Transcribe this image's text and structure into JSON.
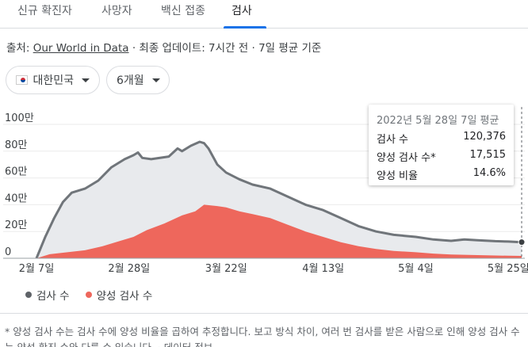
{
  "tabs": [
    {
      "label": "신규 확진자",
      "active": false
    },
    {
      "label": "사망자",
      "active": false
    },
    {
      "label": "백신 접종",
      "active": false
    },
    {
      "label": "검사",
      "active": true
    }
  ],
  "source": {
    "prefix": "출처:",
    "link_text": "Our World in Data",
    "rest": "· 최종 업데이트: 7시간 전 · 7일 평균 기준"
  },
  "filters": {
    "region": "대한민국",
    "period": "6개월"
  },
  "tooltip": {
    "title": "2022년 5월 28일 7일 평균",
    "rows": [
      {
        "label": "검사 수",
        "value": "120,376"
      },
      {
        "label": "양성 검사 수*",
        "value": "17,515"
      },
      {
        "label": "양성 비율",
        "value": "14.6%"
      }
    ]
  },
  "legend": {
    "tests": "검사 수",
    "positive": "양성 검사 수"
  },
  "colors": {
    "tests_line": "#70757a",
    "tests_fill": "#e8eaed",
    "positive_fill": "#ee675c",
    "accent": "#1a73e8"
  },
  "footnote": "* 양성 검사 수는 검사 수에 양성 비율을 곱하여 추정합니다. 보고 방식 차이, 여러 번 검사를 받은 사람으로 인해 양성 검사 수는 양성 확진 수와 다를 수 있습니다. · 데이터 정보",
  "chart_data": {
    "type": "area",
    "ylim": [
      0,
      1000000
    ],
    "y_ticks": [
      0,
      200000,
      400000,
      600000,
      800000,
      1000000
    ],
    "y_tick_labels": [
      "0",
      "20만",
      "40만",
      "60만",
      "80만",
      "100만"
    ],
    "x_ticks": [
      "2월 7일",
      "2월 28일",
      "3월 22일",
      "4월 13일",
      "5월 4일",
      "5월 25일"
    ],
    "x_range": [
      "2022-02-07",
      "2022-05-28"
    ],
    "grid": true,
    "legend_position": "bottom-left",
    "highlight": {
      "date": "2022-05-28",
      "tests": 120376,
      "positive": 17515
    },
    "series": [
      {
        "name": "검사 수",
        "points": [
          [
            "2022-02-07",
            0
          ],
          [
            "2022-02-09",
            160000
          ],
          [
            "2022-02-11",
            300000
          ],
          [
            "2022-02-13",
            420000
          ],
          [
            "2022-02-15",
            490000
          ],
          [
            "2022-02-18",
            520000
          ],
          [
            "2022-02-21",
            580000
          ],
          [
            "2022-02-24",
            680000
          ],
          [
            "2022-02-27",
            740000
          ],
          [
            "2022-03-01",
            770000
          ],
          [
            "2022-03-02",
            790000
          ],
          [
            "2022-03-03",
            750000
          ],
          [
            "2022-03-05",
            740000
          ],
          [
            "2022-03-09",
            760000
          ],
          [
            "2022-03-11",
            820000
          ],
          [
            "2022-03-12",
            800000
          ],
          [
            "2022-03-14",
            840000
          ],
          [
            "2022-03-16",
            870000
          ],
          [
            "2022-03-17",
            860000
          ],
          [
            "2022-03-18",
            820000
          ],
          [
            "2022-03-20",
            700000
          ],
          [
            "2022-03-22",
            640000
          ],
          [
            "2022-03-25",
            590000
          ],
          [
            "2022-03-28",
            550000
          ],
          [
            "2022-04-01",
            520000
          ],
          [
            "2022-04-05",
            460000
          ],
          [
            "2022-04-09",
            400000
          ],
          [
            "2022-04-13",
            360000
          ],
          [
            "2022-04-17",
            300000
          ],
          [
            "2022-04-21",
            240000
          ],
          [
            "2022-04-25",
            200000
          ],
          [
            "2022-04-29",
            175000
          ],
          [
            "2022-05-04",
            160000
          ],
          [
            "2022-05-08",
            140000
          ],
          [
            "2022-05-12",
            130000
          ],
          [
            "2022-05-15",
            140000
          ],
          [
            "2022-05-18",
            135000
          ],
          [
            "2022-05-22",
            128000
          ],
          [
            "2022-05-25",
            125000
          ],
          [
            "2022-05-28",
            120376
          ]
        ]
      },
      {
        "name": "양성 검사 수",
        "points": [
          [
            "2022-02-07",
            0
          ],
          [
            "2022-02-10",
            30000
          ],
          [
            "2022-02-14",
            45000
          ],
          [
            "2022-02-18",
            60000
          ],
          [
            "2022-02-22",
            90000
          ],
          [
            "2022-02-26",
            130000
          ],
          [
            "2022-03-01",
            160000
          ],
          [
            "2022-03-04",
            210000
          ],
          [
            "2022-03-08",
            260000
          ],
          [
            "2022-03-12",
            320000
          ],
          [
            "2022-03-15",
            350000
          ],
          [
            "2022-03-17",
            400000
          ],
          [
            "2022-03-20",
            390000
          ],
          [
            "2022-03-22",
            380000
          ],
          [
            "2022-03-25",
            350000
          ],
          [
            "2022-03-28",
            330000
          ],
          [
            "2022-04-01",
            300000
          ],
          [
            "2022-04-05",
            250000
          ],
          [
            "2022-04-09",
            200000
          ],
          [
            "2022-04-13",
            160000
          ],
          [
            "2022-04-17",
            120000
          ],
          [
            "2022-04-21",
            90000
          ],
          [
            "2022-04-25",
            70000
          ],
          [
            "2022-04-29",
            55000
          ],
          [
            "2022-05-04",
            45000
          ],
          [
            "2022-05-08",
            35000
          ],
          [
            "2022-05-12",
            28000
          ],
          [
            "2022-05-16",
            25000
          ],
          [
            "2022-05-20",
            22000
          ],
          [
            "2022-05-25",
            19000
          ],
          [
            "2022-05-28",
            17515
          ]
        ]
      }
    ]
  }
}
